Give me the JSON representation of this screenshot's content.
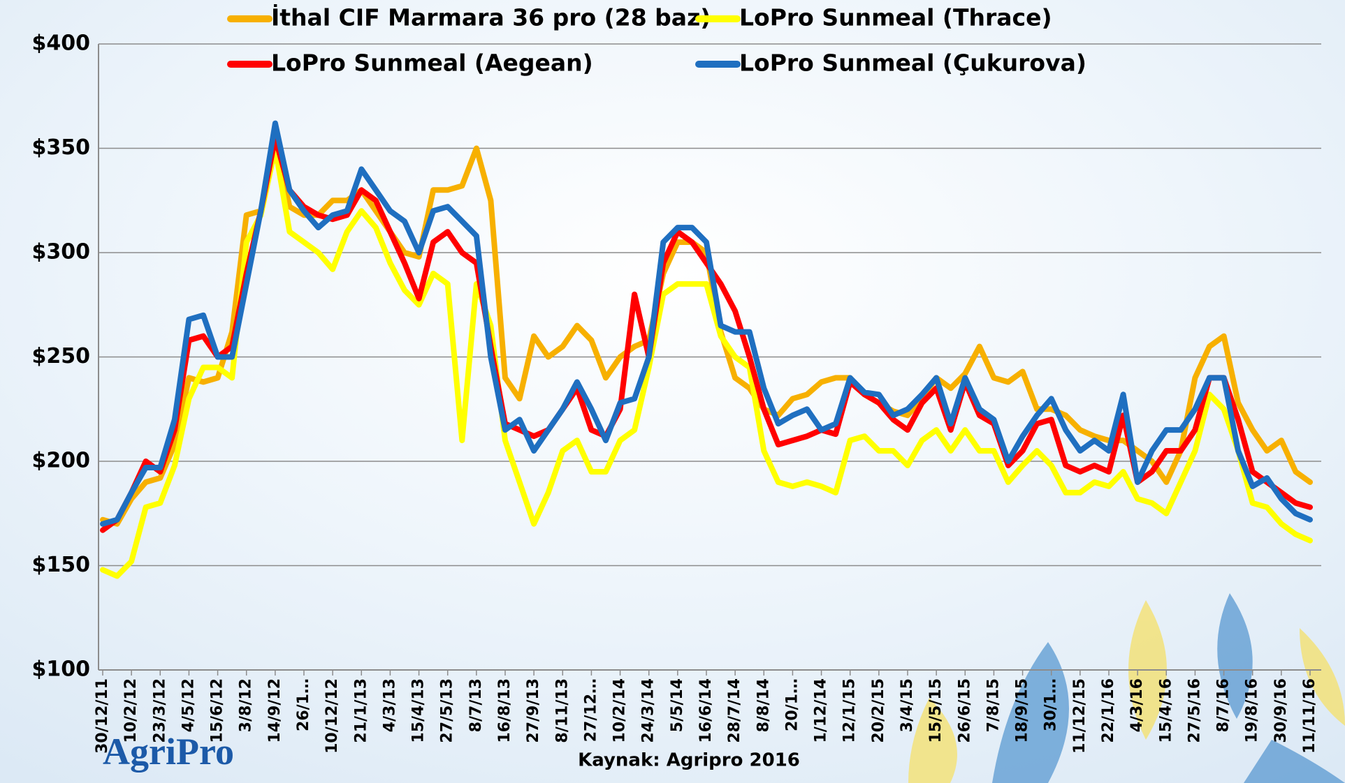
{
  "chart_data": {
    "type": "line",
    "source": "Kaynak: Agripro 2016",
    "brand": "AgriPro",
    "categories": [
      "30/12/11",
      null,
      "10/2/12",
      null,
      "23/3/12",
      null,
      "4/5/12",
      null,
      "15/6/12",
      null,
      "3/8/12",
      null,
      "14/9/12",
      null,
      "26/1…",
      null,
      "10/12/12",
      null,
      "21/1/13",
      null,
      "4/3/13",
      null,
      "15/4/13",
      null,
      "27/5/13",
      null,
      "8/7/13",
      null,
      "16/8/13",
      null,
      "27/9/13",
      null,
      "8/11/13",
      null,
      "27/12…",
      null,
      "10/2/14",
      null,
      "24/3/14",
      null,
      "5/5/14",
      null,
      "16/6/14",
      null,
      "28/7/14",
      null,
      "8/8/14",
      null,
      "20/1…",
      null,
      "1/12/14",
      null,
      "12/1/15",
      null,
      "20/2/15",
      null,
      "3/4/15",
      null,
      "15/5/15",
      null,
      "26/6/15",
      null,
      "7/8/15",
      null,
      "18/9/15",
      null,
      "30/1…",
      null,
      "11/12/15",
      null,
      "22/1/16",
      null,
      "4/3/16",
      null,
      "15/4/16",
      null,
      "27/5/16",
      null,
      "8/7/16",
      null,
      "19/8/16",
      null,
      "30/9/16",
      null,
      "11/11/16"
    ],
    "series": [
      {
        "name": "İthal CIF Marmara 36 pro (28 baz)",
        "color": "#f7b000",
        "values": [
          172,
          170,
          182,
          190,
          192,
          208,
          240,
          238,
          240,
          262,
          318,
          320,
          355,
          322,
          318,
          318,
          325,
          325,
          330,
          320,
          310,
          300,
          298,
          330,
          330,
          332,
          350,
          325,
          240,
          230,
          260,
          250,
          255,
          265,
          258,
          240,
          250,
          255,
          258,
          290,
          305,
          305,
          300,
          262,
          240,
          235,
          225,
          222,
          230,
          232,
          238,
          240,
          240,
          232,
          228,
          224,
          222,
          230,
          240,
          235,
          242,
          255,
          240,
          238,
          243,
          225,
          225,
          222,
          215,
          212,
          210,
          210,
          205,
          200,
          190,
          205,
          240,
          255,
          260,
          228,
          215,
          205,
          210,
          195,
          190
        ]
      },
      {
        "name": "LoPro Sunmeal (Thrace)",
        "color": "#ffff00",
        "values": [
          148,
          145,
          152,
          178,
          180,
          198,
          230,
          245,
          245,
          240,
          305,
          318,
          350,
          310,
          305,
          300,
          292,
          310,
          320,
          312,
          295,
          282,
          275,
          290,
          285,
          210,
          285,
          265,
          210,
          190,
          170,
          185,
          205,
          210,
          195,
          195,
          210,
          215,
          245,
          280,
          285,
          285,
          285,
          260,
          250,
          245,
          205,
          190,
          188,
          190,
          188,
          185,
          210,
          212,
          205,
          205,
          198,
          210,
          215,
          205,
          215,
          205,
          205,
          190,
          198,
          205,
          198,
          185,
          185,
          190,
          188,
          195,
          182,
          180,
          175,
          190,
          205,
          232,
          225,
          205,
          180,
          178,
          170,
          165,
          162
        ]
      },
      {
        "name": "LoPro Sunmeal (Aegean)",
        "color": "#ff0000",
        "values": [
          167,
          172,
          185,
          200,
          195,
          215,
          258,
          260,
          250,
          255,
          290,
          320,
          355,
          330,
          322,
          318,
          316,
          318,
          330,
          325,
          310,
          295,
          278,
          305,
          310,
          300,
          295,
          255,
          218,
          215,
          212,
          215,
          225,
          235,
          215,
          212,
          225,
          280,
          250,
          295,
          310,
          305,
          295,
          285,
          272,
          250,
          225,
          208,
          210,
          212,
          215,
          213,
          238,
          232,
          228,
          220,
          215,
          228,
          235,
          215,
          238,
          222,
          218,
          198,
          205,
          218,
          220,
          198,
          195,
          198,
          195,
          222,
          190,
          195,
          205,
          205,
          215,
          240,
          240,
          220,
          195,
          190,
          185,
          180,
          178
        ]
      },
      {
        "name": "LoPro Sunmeal (Çukurova)",
        "color": "#1f6fc0",
        "values": [
          170,
          172,
          185,
          197,
          197,
          220,
          268,
          270,
          250,
          250,
          285,
          320,
          362,
          330,
          320,
          312,
          318,
          320,
          340,
          330,
          320,
          315,
          300,
          320,
          322,
          315,
          308,
          250,
          215,
          220,
          205,
          215,
          225,
          238,
          225,
          210,
          228,
          230,
          250,
          305,
          312,
          312,
          305,
          265,
          262,
          262,
          235,
          218,
          222,
          225,
          215,
          218,
          240,
          233,
          232,
          222,
          225,
          232,
          240,
          218,
          240,
          225,
          220,
          200,
          212,
          222,
          230,
          215,
          205,
          210,
          205,
          232,
          190,
          205,
          215,
          215,
          225,
          240,
          240,
          205,
          188,
          192,
          182,
          175,
          172
        ]
      }
    ],
    "ylim": [
      100,
      400
    ],
    "yticks": [
      {
        "value": 100,
        "label": "$100"
      },
      {
        "value": 150,
        "label": "$150"
      },
      {
        "value": 200,
        "label": "$200"
      },
      {
        "value": 250,
        "label": "$250"
      },
      {
        "value": 300,
        "label": "$300"
      },
      {
        "value": 350,
        "label": "$350"
      },
      {
        "value": 400,
        "label": "$400"
      }
    ],
    "grid": true
  }
}
